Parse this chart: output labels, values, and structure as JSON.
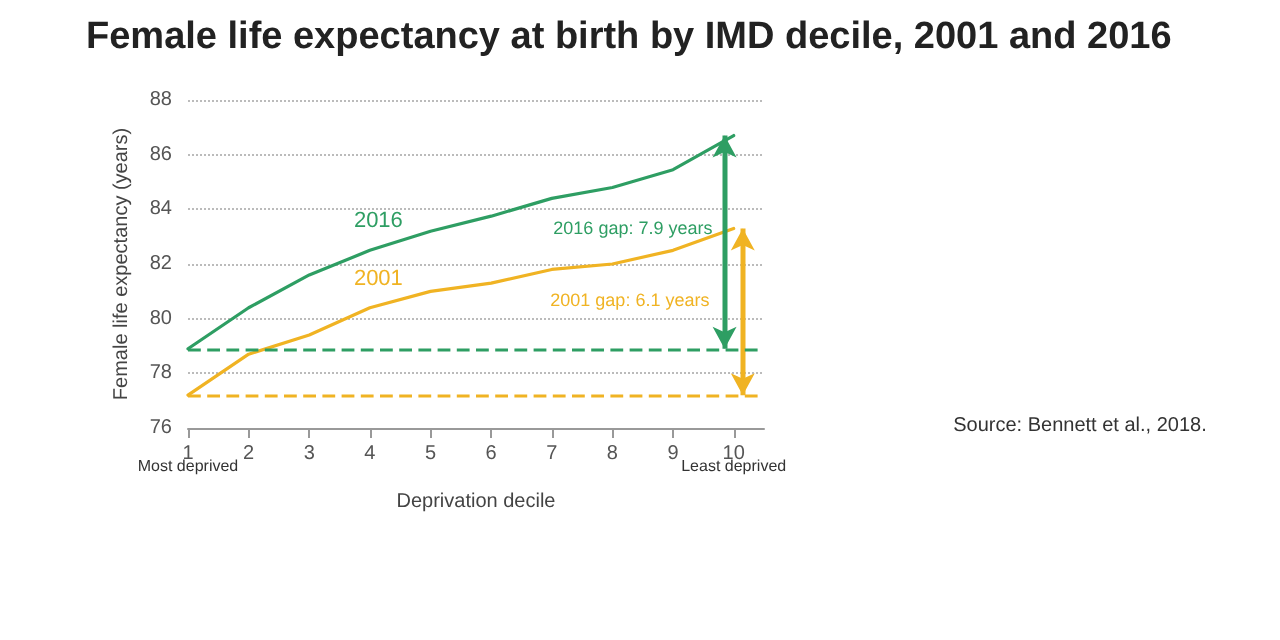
{
  "chart_data": {
    "type": "line",
    "title": "Female life expectancy at birth by IMD decile, 2001 and 2016",
    "xlabel": "Deprivation decile",
    "ylabel": "Female life expectancy (years)",
    "x": [
      1,
      2,
      3,
      4,
      5,
      6,
      7,
      8,
      9,
      10
    ],
    "series": [
      {
        "name": "2016",
        "color": "#2e9e63",
        "values": [
          78.9,
          80.4,
          81.6,
          82.5,
          83.2,
          83.75,
          84.4,
          84.8,
          85.45,
          86.7
        ]
      },
      {
        "name": "2001",
        "color": "#f0b323",
        "values": [
          77.2,
          78.7,
          79.4,
          80.4,
          81.0,
          81.3,
          81.8,
          82.0,
          82.5,
          83.3
        ]
      }
    ],
    "xlim": [
      1,
      10.5
    ],
    "xticks": [
      1,
      2,
      3,
      4,
      5,
      6,
      7,
      8,
      9,
      10
    ],
    "ylim": [
      76,
      88
    ],
    "yticks": [
      76,
      78,
      80,
      82,
      84,
      86,
      88
    ],
    "ref_lines": [
      {
        "axis": "y",
        "value": 78.9,
        "color": "#2e9e63",
        "line_style": "dashed"
      },
      {
        "axis": "y",
        "value": 77.2,
        "color": "#f0b323",
        "line_style": "dashed"
      }
    ],
    "annotations": [
      "2016 gap: 7.9 years",
      "2001 gap: 6.1 years",
      "Most deprived",
      "Least deprived",
      "Source: Bennett et al., 2018."
    ],
    "grid": "y",
    "legend": false,
    "marker": "none",
    "line_style": "solid"
  }
}
